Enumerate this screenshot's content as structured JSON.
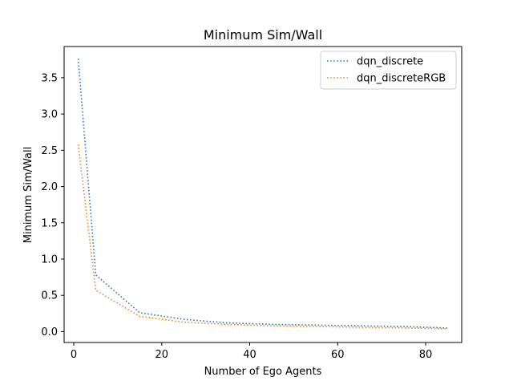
{
  "chart_data": {
    "type": "line",
    "title": "Minimum Sim/Wall",
    "xlabel": "Number of Ego Agents",
    "ylabel": "Minimum Sim/Wall",
    "xlim": [
      -2.2,
      88.2
    ],
    "ylim": [
      -0.15,
      3.93
    ],
    "xticks": [
      0,
      20,
      40,
      60,
      80
    ],
    "yticks": [
      0.0,
      0.5,
      1.0,
      1.5,
      2.0,
      2.5,
      3.0,
      3.5
    ],
    "grid": false,
    "legend": "top-right",
    "line_style": "dotted",
    "series": [
      {
        "name": "dqn_discrete",
        "color": "#1f77b4",
        "x": [
          1,
          5,
          15,
          25,
          35,
          45,
          55,
          65,
          75,
          85
        ],
        "y": [
          3.76,
          0.78,
          0.26,
          0.17,
          0.12,
          0.1,
          0.09,
          0.08,
          0.07,
          0.05
        ]
      },
      {
        "name": "dqn_discreteRGB",
        "color": "#ff7f0e",
        "x": [
          1,
          5,
          15,
          25,
          35,
          45,
          55,
          65,
          75,
          85
        ],
        "y": [
          2.58,
          0.57,
          0.21,
          0.13,
          0.1,
          0.08,
          0.07,
          0.06,
          0.05,
          0.04
        ]
      }
    ]
  }
}
